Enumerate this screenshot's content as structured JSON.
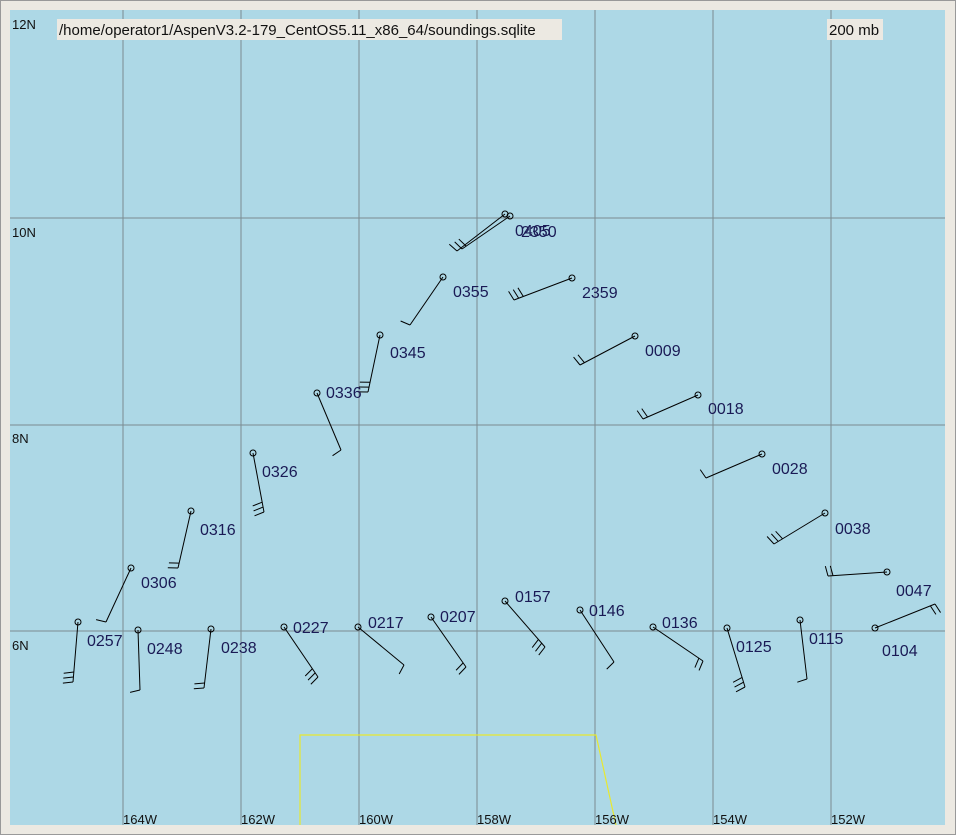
{
  "header": {
    "file": "/home/operator1/AspenV3.2-179_CentOS5.11_x86_64/soundings.sqlite",
    "level": "200 mb"
  },
  "lat_labels": [
    "12N",
    "10N",
    "8N",
    "6N"
  ],
  "lon_labels": [
    "164W",
    "162W",
    "160W",
    "158W",
    "156W",
    "154W",
    "152W"
  ],
  "stations": [
    "0405",
    "2350",
    "2359",
    "0355",
    "0009",
    "0345",
    "0336",
    "0018",
    "0326",
    "0028",
    "0316",
    "0038",
    "0306",
    "0047",
    "0257",
    "0248",
    "0238",
    "0227",
    "0217",
    "0207",
    "0157",
    "0146",
    "0136",
    "0125",
    "0115",
    "0104"
  ]
}
